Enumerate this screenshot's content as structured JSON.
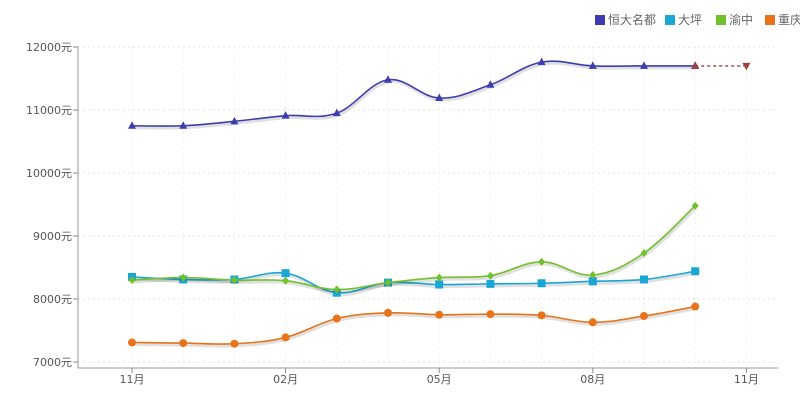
{
  "chart_data": {
    "type": "line",
    "title": "",
    "xlabel": "",
    "ylabel": "",
    "ylim": [
      7000,
      12000
    ],
    "y_ticks": [
      7000,
      8000,
      9000,
      10000,
      11000,
      12000
    ],
    "y_tick_suffix": "元",
    "x_tick_labels": [
      "11月",
      "02月",
      "05月",
      "08月",
      "11月"
    ],
    "x_tick_positions": [
      0,
      3,
      6,
      9,
      12
    ],
    "grid": true,
    "legend_position": "top-right",
    "series": [
      {
        "name": "恒大名都",
        "color": "#3d3db0",
        "marker": "triangle",
        "values": [
          10750,
          10750,
          10820,
          10910,
          10950,
          11480,
          11190,
          11400,
          11760,
          11700,
          11700,
          11700
        ],
        "projection": {
          "from_index": 11,
          "to_index": 12,
          "value": 11700,
          "color": "#a04040"
        }
      },
      {
        "name": "大坪",
        "color": "#1aa7d6",
        "marker": "square",
        "values": [
          8350,
          8310,
          8310,
          8410,
          8100,
          8260,
          8230,
          8240,
          8250,
          8280,
          8310,
          8440
        ]
      },
      {
        "name": "渝中",
        "color": "#72c02c",
        "marker": "diamond",
        "values": [
          8300,
          8340,
          8300,
          8290,
          8150,
          8260,
          8340,
          8370,
          8590,
          8380,
          8730,
          9480
        ]
      },
      {
        "name": "重庆",
        "color": "#e8731a",
        "marker": "circle",
        "values": [
          7310,
          7300,
          7290,
          7390,
          7690,
          7780,
          7750,
          7760,
          7740,
          7630,
          7730,
          7880
        ]
      }
    ]
  }
}
